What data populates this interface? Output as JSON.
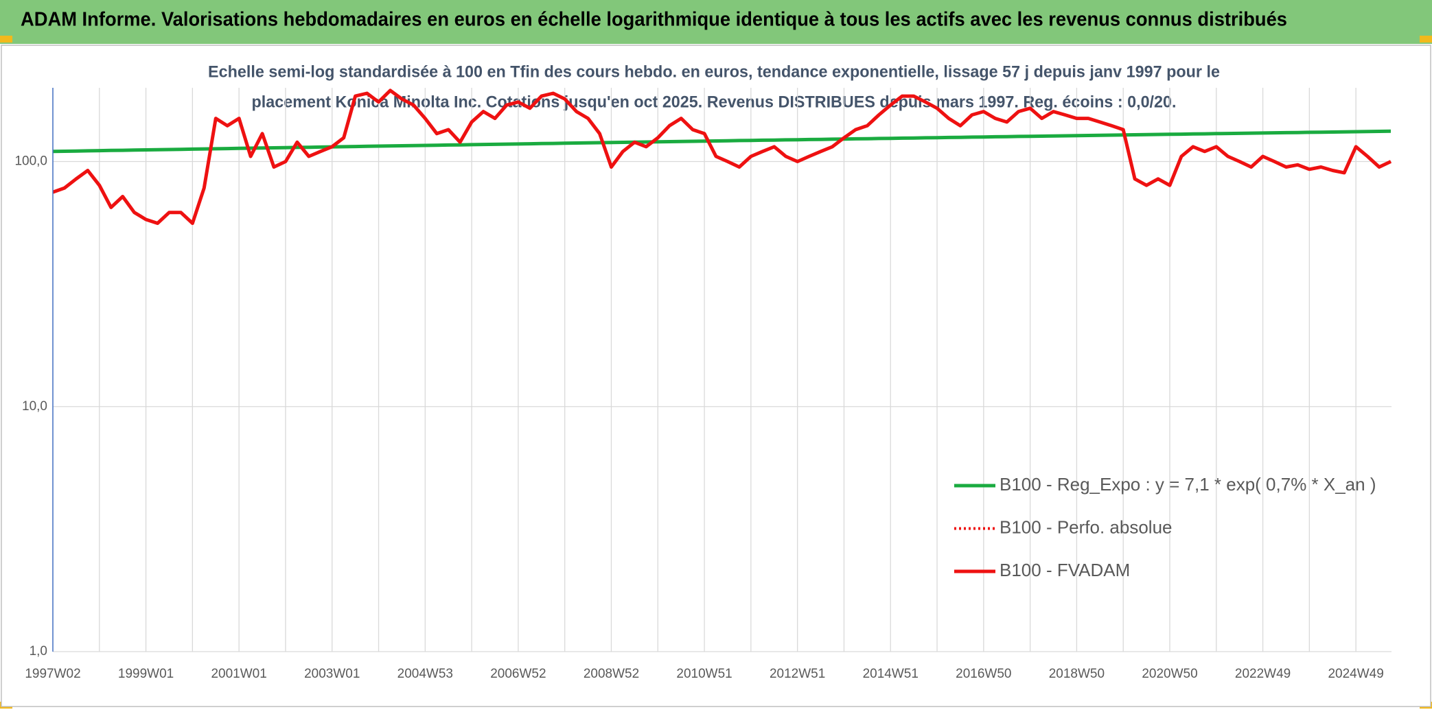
{
  "header": {
    "title": "ADAM Informe. Valorisations hebdomadaires en euros en échelle logarithmique identique à tous les actifs avec les revenus connus distribués"
  },
  "chart_data": {
    "type": "line",
    "subtitle": [
      "Echelle semi-log standardisée à 100 en Tfin des cours hebdo. en euros, tendance exponentielle, lissage 57 j depuis janv 1997 pour le",
      "placement Konica Minolta Inc. Cotations jusqu'en oct 2025. Revenus DISTRIBUES depuis mars 1997. Reg. écoins  : 0,0/20."
    ],
    "categories": [
      "1997W02",
      null,
      null,
      null,
      null,
      null,
      null,
      null,
      "1999W01",
      null,
      null,
      null,
      null,
      null,
      null,
      null,
      "2001W01",
      null,
      null,
      null,
      null,
      null,
      null,
      null,
      "2003W01",
      null,
      null,
      null,
      null,
      null,
      null,
      null,
      "2004W53",
      null,
      null,
      null,
      null,
      null,
      null,
      null,
      "2006W52",
      null,
      null,
      null,
      null,
      null,
      null,
      null,
      "2008W52",
      null,
      null,
      null,
      null,
      null,
      null,
      null,
      "2010W51",
      null,
      null,
      null,
      null,
      null,
      null,
      null,
      "2012W51",
      null,
      null,
      null,
      null,
      null,
      null,
      null,
      "2014W51",
      null,
      null,
      null,
      null,
      null,
      null,
      null,
      "2016W50",
      null,
      null,
      null,
      null,
      null,
      null,
      null,
      "2018W50",
      null,
      null,
      null,
      null,
      null,
      null,
      null,
      "2020W50",
      null,
      null,
      null,
      null,
      null,
      null,
      null,
      "2022W49",
      null,
      null,
      null,
      null,
      null,
      null,
      null,
      "2024W49",
      null,
      null,
      null
    ],
    "series": [
      {
        "name": "B100 - Reg_Expo : y = 7,1 * exp( 0,7% *  X_an )",
        "color": "#1aab40",
        "style": "solid",
        "values": [
          110,
          110.2,
          110.4,
          110.6,
          110.8,
          111,
          111.2,
          111.4,
          111.6,
          111.8,
          112,
          112.2,
          112.4,
          112.6,
          112.8,
          113,
          113.2,
          113.4,
          113.6,
          113.8,
          114,
          114.2,
          114.4,
          114.6,
          114.8,
          115,
          115.2,
          115.4,
          115.6,
          115.8,
          116,
          116.2,
          116.4,
          116.6,
          116.8,
          117,
          117.2,
          117.4,
          117.6,
          117.8,
          118,
          118.2,
          118.4,
          118.6,
          118.8,
          119,
          119.2,
          119.4,
          119.6,
          119.8,
          120,
          120.2,
          120.4,
          120.6,
          120.8,
          121,
          121.2,
          121.4,
          121.6,
          121.8,
          122,
          122.2,
          122.4,
          122.6,
          122.8,
          123,
          123.2,
          123.4,
          123.6,
          123.8,
          124,
          124.2,
          124.4,
          124.6,
          124.8,
          125,
          125.2,
          125.4,
          125.6,
          125.8,
          126,
          126.2,
          126.4,
          126.6,
          126.8,
          127,
          127.2,
          127.4,
          127.6,
          127.8,
          128,
          128.2,
          128.4,
          128.6,
          128.8,
          129,
          129.2,
          129.4,
          129.6,
          129.8,
          130,
          130.2,
          130.4,
          130.6,
          130.8,
          131,
          131.2,
          131.4,
          131.6,
          131.8,
          132,
          132.2,
          132.4,
          132.6,
          132.8,
          133
        ]
      },
      {
        "name": "B100 - Perfo. absolue",
        "color": "#ee1111",
        "style": "dotted",
        "values": [
          75,
          78,
          85,
          92,
          80,
          65,
          72,
          62,
          58,
          56,
          62,
          62,
          56,
          78,
          150,
          140,
          150,
          105,
          130,
          95,
          100,
          120,
          105,
          110,
          115,
          125,
          185,
          190,
          175,
          195,
          180,
          170,
          150,
          130,
          135,
          120,
          145,
          160,
          150,
          170,
          175,
          165,
          185,
          190,
          180,
          160,
          150,
          130,
          95,
          110,
          120,
          115,
          125,
          140,
          150,
          135,
          130,
          105,
          100,
          95,
          105,
          110,
          115,
          105,
          100,
          105,
          110,
          115,
          125,
          135,
          140,
          155,
          170,
          185,
          185,
          175,
          165,
          150,
          140,
          155,
          160,
          150,
          145,
          160,
          165,
          150,
          160,
          155,
          150,
          150,
          145,
          140,
          135,
          85,
          80,
          85,
          80,
          105,
          115,
          110,
          115,
          105,
          100,
          95,
          105,
          100,
          95,
          97,
          93,
          95,
          92,
          90,
          115,
          105,
          95,
          100
        ]
      },
      {
        "name": "B100 - FVADAM",
        "color": "#ee1111",
        "style": "solid",
        "values": [
          75,
          78,
          85,
          92,
          80,
          65,
          72,
          62,
          58,
          56,
          62,
          62,
          56,
          78,
          150,
          140,
          150,
          105,
          130,
          95,
          100,
          120,
          105,
          110,
          115,
          125,
          185,
          190,
          175,
          195,
          180,
          170,
          150,
          130,
          135,
          120,
          145,
          160,
          150,
          170,
          175,
          165,
          185,
          190,
          180,
          160,
          150,
          130,
          95,
          110,
          120,
          115,
          125,
          140,
          150,
          135,
          130,
          105,
          100,
          95,
          105,
          110,
          115,
          105,
          100,
          105,
          110,
          115,
          125,
          135,
          140,
          155,
          170,
          185,
          185,
          175,
          165,
          150,
          140,
          155,
          160,
          150,
          145,
          160,
          165,
          150,
          160,
          155,
          150,
          150,
          145,
          140,
          135,
          85,
          80,
          85,
          80,
          105,
          115,
          110,
          115,
          105,
          100,
          95,
          105,
          100,
          95,
          97,
          93,
          95,
          92,
          90,
          115,
          105,
          95,
          100
        ]
      }
    ],
    "log_scale": true,
    "ylim": [
      1,
      200
    ],
    "yticks": [
      {
        "value": 1,
        "label": "1,0"
      },
      {
        "value": 10,
        "label": "10,0"
      },
      {
        "value": 100,
        "label": "100,0"
      }
    ],
    "grid": true,
    "legend": "right"
  }
}
